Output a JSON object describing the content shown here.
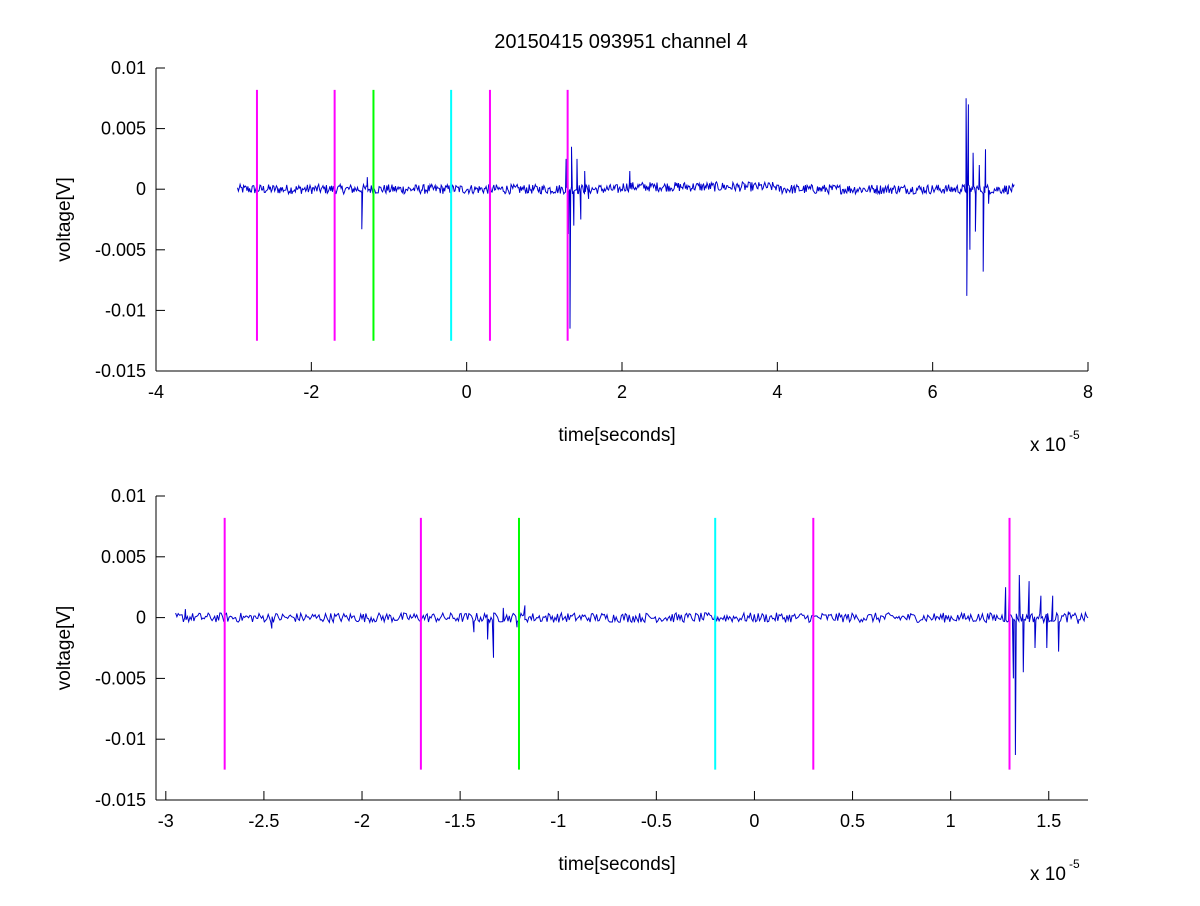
{
  "figure": {
    "title": "20150415 093951 channel 4"
  },
  "chart_data": [
    {
      "type": "line",
      "title": "20150415 093951 channel 4",
      "xlabel": "time[seconds]",
      "ylabel": "voltage[V]",
      "x_multiplier_label": "x 10",
      "x_multiplier_exponent": "-5",
      "xlim": [
        -4,
        8
      ],
      "ylim": [
        -0.015,
        0.01
      ],
      "xticks": [
        -4,
        -2,
        0,
        2,
        4,
        6,
        8
      ],
      "xtick_labels": [
        "-4",
        "-2",
        "0",
        "2",
        "4",
        "6",
        "8"
      ],
      "yticks": [
        0.01,
        0.005,
        0,
        -0.005,
        -0.01,
        -0.015
      ],
      "ytick_labels": [
        "0.01",
        "0.005",
        "0",
        "-0.005",
        "-0.01",
        "-0.015"
      ],
      "grid": false,
      "series": [
        {
          "color": "#0000cc",
          "x_range": [
            -2.95,
            7.05
          ],
          "baseline_segments": [
            {
              "x": [
                -2.95,
                2.0
              ],
              "level": 0.0
            },
            {
              "x": [
                2.0,
                4.0
              ],
              "level": 0.0002
            },
            {
              "x": [
                4.0,
                7.05
              ],
              "level": 0.0
            }
          ],
          "noise_amplitude": 0.0004,
          "points": [
            {
              "x": -1.35,
              "y": -0.0033
            },
            {
              "x": -1.28,
              "y": 0.001
            },
            {
              "x": 1.28,
              "y": 0.0025
            },
            {
              "x": 1.3,
              "y": 0.0042
            },
            {
              "x": 1.31,
              "y": -0.0037
            },
            {
              "x": 1.33,
              "y": -0.0115
            },
            {
              "x": 1.35,
              "y": 0.0035
            },
            {
              "x": 1.38,
              "y": -0.003
            },
            {
              "x": 1.42,
              "y": 0.0025
            },
            {
              "x": 1.47,
              "y": -0.0025
            },
            {
              "x": 1.52,
              "y": 0.0015
            },
            {
              "x": 1.57,
              "y": -0.0008
            },
            {
              "x": 2.1,
              "y": 0.0015
            },
            {
              "x": 6.43,
              "y": 0.0075
            },
            {
              "x": 6.44,
              "y": -0.0088
            },
            {
              "x": 6.46,
              "y": 0.007
            },
            {
              "x": 6.48,
              "y": -0.005
            },
            {
              "x": 6.52,
              "y": 0.003
            },
            {
              "x": 6.55,
              "y": -0.0035
            },
            {
              "x": 6.6,
              "y": 0.002
            },
            {
              "x": 6.65,
              "y": -0.0068
            },
            {
              "x": 6.68,
              "y": 0.0033
            },
            {
              "x": 6.72,
              "y": -0.0012
            }
          ]
        }
      ],
      "markers": [
        {
          "x": -2.7,
          "color": "#ff00ff",
          "y_range": [
            -0.0125,
            0.0082
          ]
        },
        {
          "x": -1.7,
          "color": "#ff00ff",
          "y_range": [
            -0.0125,
            0.0082
          ]
        },
        {
          "x": -1.2,
          "color": "#00ff00",
          "y_range": [
            -0.0125,
            0.0082
          ]
        },
        {
          "x": -0.2,
          "color": "#00ffff",
          "y_range": [
            -0.0125,
            0.0082
          ]
        },
        {
          "x": 0.3,
          "color": "#ff00ff",
          "y_range": [
            -0.0125,
            0.0082
          ]
        },
        {
          "x": 1.3,
          "color": "#ff00ff",
          "y_range": [
            -0.0125,
            0.0082
          ]
        }
      ]
    },
    {
      "type": "line",
      "title": "",
      "xlabel": "time[seconds]",
      "ylabel": "voltage[V]",
      "x_multiplier_label": "x 10",
      "x_multiplier_exponent": "-5",
      "xlim": [
        -3.05,
        1.7
      ],
      "ylim": [
        -0.015,
        0.01
      ],
      "xticks": [
        -3,
        -2.5,
        -2,
        -1.5,
        -1,
        -0.5,
        0,
        0.5,
        1,
        1.5
      ],
      "xtick_labels": [
        "-3",
        "-2.5",
        "-2",
        "-1.5",
        "-1",
        "-0.5",
        "0",
        "0.5",
        "1",
        "1.5"
      ],
      "yticks": [
        0.01,
        0.005,
        0,
        -0.005,
        -0.01,
        -0.015
      ],
      "ytick_labels": [
        "0.01",
        "0.005",
        "0",
        "-0.005",
        "-0.01",
        "-0.015"
      ],
      "grid": false,
      "series": [
        {
          "color": "#0000cc",
          "x_range": [
            -2.95,
            1.7
          ],
          "baseline_segments": [
            {
              "x": [
                -2.95,
                1.7
              ],
              "level": 0.0
            }
          ],
          "noise_amplitude": 0.0004,
          "points": [
            {
              "x": -2.9,
              "y": 0.0007
            },
            {
              "x": -2.46,
              "y": -0.0009
            },
            {
              "x": -1.43,
              "y": -0.0012
            },
            {
              "x": -1.36,
              "y": -0.0018
            },
            {
              "x": -1.33,
              "y": -0.0033
            },
            {
              "x": -1.28,
              "y": 0.0008
            },
            {
              "x": -1.21,
              "y": -0.0008
            },
            {
              "x": -1.17,
              "y": 0.001
            },
            {
              "x": 1.28,
              "y": 0.0025
            },
            {
              "x": 1.3,
              "y": 0.0042
            },
            {
              "x": 1.32,
              "y": -0.005
            },
            {
              "x": 1.33,
              "y": -0.0113
            },
            {
              "x": 1.35,
              "y": 0.0035
            },
            {
              "x": 1.37,
              "y": -0.0045
            },
            {
              "x": 1.4,
              "y": 0.003
            },
            {
              "x": 1.43,
              "y": -0.0025
            },
            {
              "x": 1.46,
              "y": 0.0018
            },
            {
              "x": 1.49,
              "y": -0.0025
            },
            {
              "x": 1.52,
              "y": 0.0018
            },
            {
              "x": 1.55,
              "y": -0.0028
            },
            {
              "x": 1.6,
              "y": 0.0005
            },
            {
              "x": 1.65,
              "y": -0.0005
            }
          ]
        }
      ],
      "markers": [
        {
          "x": -2.7,
          "color": "#ff00ff",
          "y_range": [
            -0.0125,
            0.0082
          ]
        },
        {
          "x": -1.7,
          "color": "#ff00ff",
          "y_range": [
            -0.0125,
            0.0082
          ]
        },
        {
          "x": -1.2,
          "color": "#00ff00",
          "y_range": [
            -0.0125,
            0.0082
          ]
        },
        {
          "x": -0.2,
          "color": "#00ffff",
          "y_range": [
            -0.0125,
            0.0082
          ]
        },
        {
          "x": 0.3,
          "color": "#ff00ff",
          "y_range": [
            -0.0125,
            0.0082
          ]
        },
        {
          "x": 1.3,
          "color": "#ff00ff",
          "y_range": [
            -0.0125,
            0.0082
          ]
        }
      ]
    }
  ]
}
